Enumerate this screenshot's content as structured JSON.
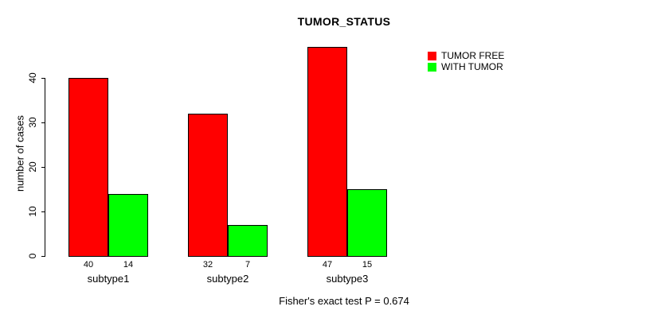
{
  "chart_data": {
    "type": "bar",
    "title": "TUMOR_STATUS",
    "ylabel": "number of cases",
    "xlabel": "",
    "categories": [
      "subtype1",
      "subtype2",
      "subtype3"
    ],
    "series": [
      {
        "name": "TUMOR FREE",
        "color": "#FF0000",
        "values": [
          40,
          32,
          47
        ]
      },
      {
        "name": "WITH TUMOR",
        "color": "#00FF00",
        "values": [
          14,
          7,
          15
        ]
      }
    ],
    "yticks": [
      0,
      10,
      20,
      30,
      40
    ],
    "ylim": [
      0,
      47
    ],
    "bar_value_labels": [
      [
        "40",
        "32",
        "47"
      ],
      [
        "14",
        "7",
        "15"
      ]
    ],
    "grid": false,
    "legend_position": "top-right",
    "annotation": "Fisher's exact test P = 0.674",
    "colors": {
      "background": "#FFFFFF",
      "axis": "#000000",
      "text": "#000000"
    }
  }
}
